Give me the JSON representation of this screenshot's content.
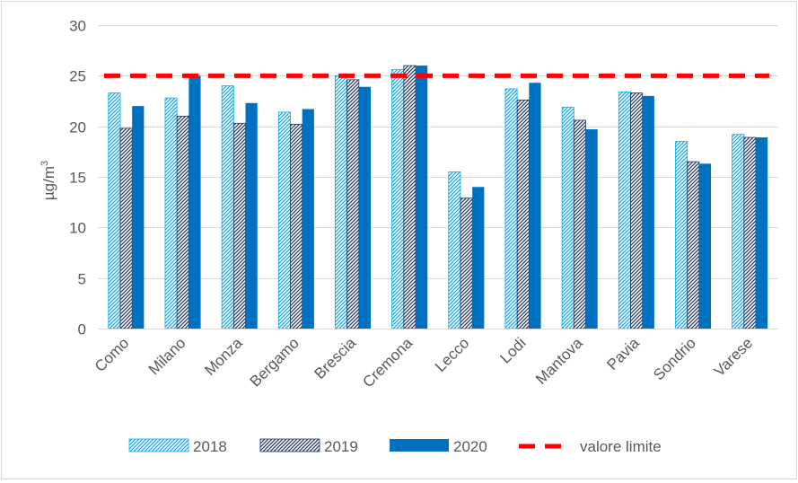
{
  "chart_data": {
    "type": "bar",
    "categories": [
      "Como",
      "Milano",
      "Monza",
      "Bergamo",
      "Brescia",
      "Cremona",
      "Lecco",
      "Lodi",
      "Mantova",
      "Pavia",
      "Sondrio",
      "Varese"
    ],
    "series": [
      {
        "name": "2018",
        "color": "#00b0f0",
        "pattern": "dense-hatch",
        "values": [
          23.3,
          22.8,
          24.0,
          21.4,
          25.0,
          25.6,
          15.5,
          23.7,
          21.9,
          23.4,
          18.5,
          19.2
        ]
      },
      {
        "name": "2019",
        "color": "#1f3864",
        "pattern": "dense-hatch",
        "values": [
          19.8,
          21.0,
          20.3,
          20.2,
          24.6,
          26.0,
          12.9,
          22.6,
          20.6,
          23.3,
          16.5,
          18.9
        ]
      },
      {
        "name": "2020",
        "color": "#0070c0",
        "pattern": "solid",
        "values": [
          22.0,
          25.0,
          22.3,
          21.7,
          23.9,
          26.0,
          14.0,
          24.3,
          19.7,
          23.0,
          16.3,
          18.9
        ]
      }
    ],
    "reference_line": {
      "name": "valore limite",
      "value": 25,
      "color": "#ff0000",
      "style": "dashed"
    },
    "ylabel": "µg/m³",
    "ylabel_base": "µg/m",
    "ylabel_sup": "3",
    "ylim": [
      0,
      30
    ],
    "yticks": [
      0,
      5,
      10,
      15,
      20,
      25,
      30
    ],
    "grid": "horizontal",
    "legend_position": "bottom"
  }
}
